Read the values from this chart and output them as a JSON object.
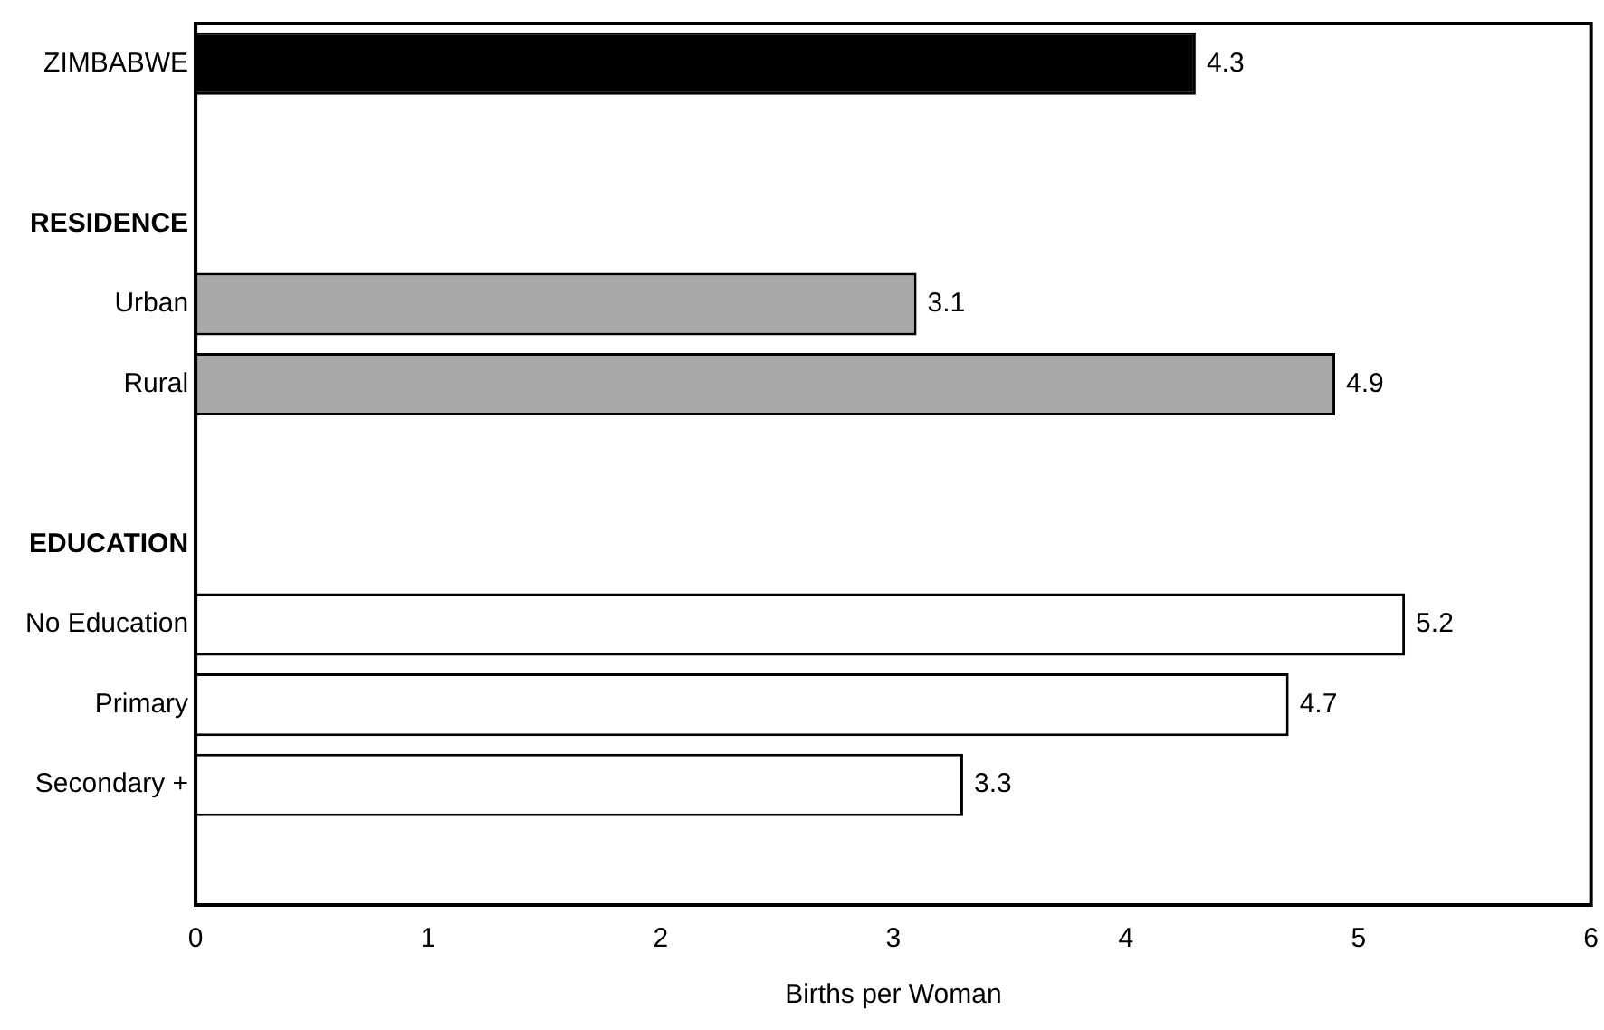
{
  "chart_data": {
    "type": "bar",
    "orientation": "horizontal",
    "xlabel": "Births per Woman",
    "categories": [
      "ZIMBABWE",
      null,
      "RESIDENCE",
      "Urban",
      "Rural",
      null,
      "EDUCATION",
      "No Education",
      "Primary",
      "Secondary +",
      null
    ],
    "values": [
      4.3,
      null,
      null,
      3.1,
      4.9,
      null,
      null,
      5.2,
      4.7,
      3.3,
      null
    ],
    "colors": [
      "#000000",
      null,
      null,
      "#a8a8a8",
      "#a8a8a8",
      null,
      null,
      "#ffffff",
      "#ffffff",
      "#ffffff",
      null
    ],
    "xlim": [
      0,
      6
    ],
    "xticks": [
      0,
      1,
      2,
      3,
      4,
      5,
      6
    ],
    "data_labels": true,
    "grid": false,
    "legend": false
  }
}
